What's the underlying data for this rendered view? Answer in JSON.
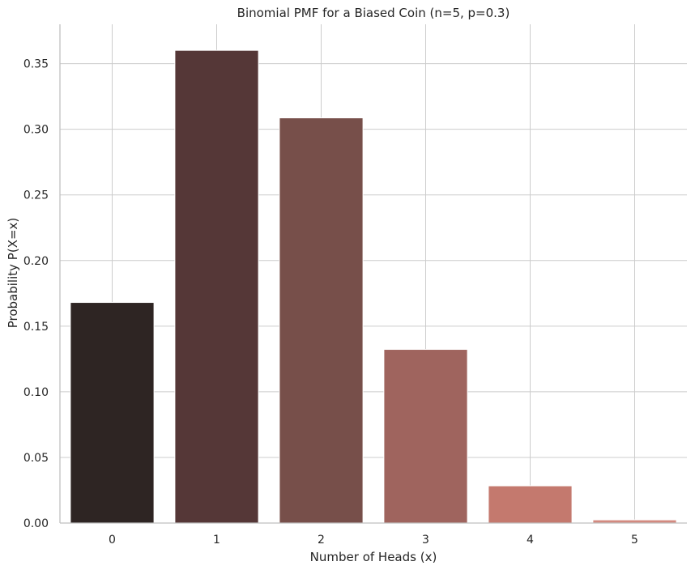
{
  "chart_data": {
    "type": "bar",
    "title": "Binomial PMF for a Biased Coin (n=5, p=0.3)",
    "xlabel": "Number of Heads (x)",
    "ylabel": "Probability P(X=x)",
    "categories": [
      "0",
      "1",
      "2",
      "3",
      "4",
      "5"
    ],
    "values": [
      0.16807,
      0.36015,
      0.3087,
      0.1323,
      0.02835,
      0.00243
    ],
    "ylim": [
      0,
      0.38
    ],
    "yticks": [
      0.0,
      0.05,
      0.1,
      0.15,
      0.2,
      0.25,
      0.3,
      0.35
    ],
    "ytick_labels": [
      "0.00",
      "0.05",
      "0.10",
      "0.15",
      "0.20",
      "0.25",
      "0.30",
      "0.35"
    ],
    "grid": true,
    "colors": [
      "#2e2523",
      "#553737",
      "#774f4a",
      "#9f645e",
      "#c4796e",
      "#d38a80"
    ],
    "grid_color": "#cccccc",
    "axis_color": "#bfbfbf"
  }
}
